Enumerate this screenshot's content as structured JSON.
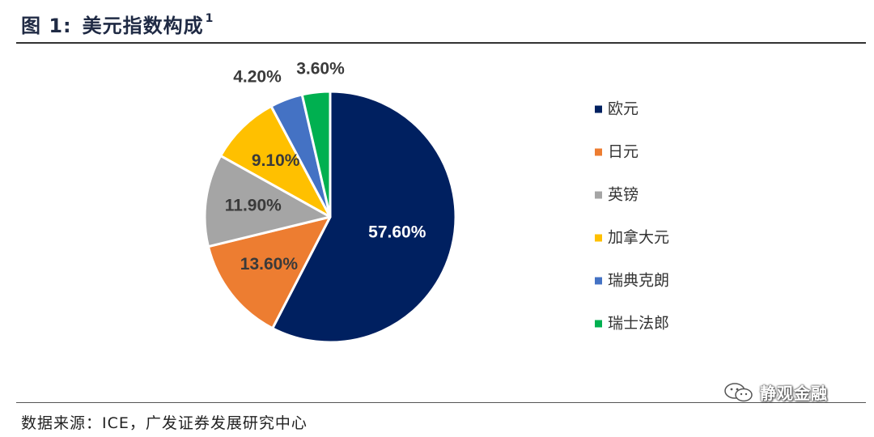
{
  "header": {
    "figure_label": "图 1:",
    "title_text": "美元指数构成",
    "footnote_mark": "1"
  },
  "source": {
    "text": "数据来源：ICE，广发证券发展研究中心"
  },
  "watermark": {
    "text": "静观金融",
    "icon": "wechat-icon"
  },
  "chart_data": {
    "type": "pie",
    "title": "美元指数构成",
    "start_angle_deg": 0,
    "direction": "clockwise",
    "legend_position": "right",
    "slices": [
      {
        "label": "欧元",
        "value": 57.6,
        "display": "57.60%",
        "color": "#002060",
        "label_color": "#ffffff",
        "label_pos": "inside"
      },
      {
        "label": "日元",
        "value": 13.6,
        "display": "13.60%",
        "color": "#ED7D31",
        "label_color": "#3a3a3a",
        "label_pos": "inside"
      },
      {
        "label": "英镑",
        "value": 11.9,
        "display": "11.90%",
        "color": "#A5A5A5",
        "label_color": "#3a3a3a",
        "label_pos": "inside"
      },
      {
        "label": "加拿大元",
        "value": 9.1,
        "display": "9.10%",
        "color": "#FFC000",
        "label_color": "#3a3a3a",
        "label_pos": "inside"
      },
      {
        "label": "瑞典克朗",
        "value": 4.2,
        "display": "4.20%",
        "color": "#4472C4",
        "label_color": "#3a3a3a",
        "label_pos": "outside"
      },
      {
        "label": "瑞士法郎",
        "value": 3.6,
        "display": "3.60%",
        "color": "#00B050",
        "label_color": "#3a3a3a",
        "label_pos": "outside"
      }
    ]
  }
}
